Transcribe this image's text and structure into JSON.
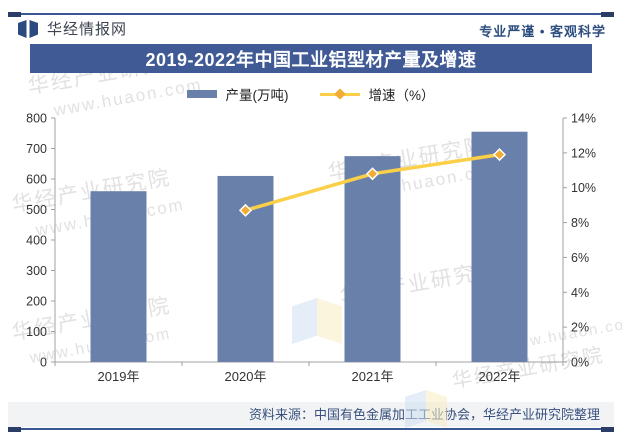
{
  "header": {
    "brand": "华经情报网",
    "slogan": "专业严谨 • 客观科学"
  },
  "title": "2019-2022年中国工业铝型材产量及增速",
  "legend": {
    "bars": "产量(万吨)",
    "line": "增速（%）"
  },
  "source": "资料来源：中国有色金属加工工业协会，华经产业研究院整理",
  "watermark": {
    "cn": "华经产业研究院",
    "url": "www.huaon.com"
  },
  "colors": {
    "banner": "#3F5A94",
    "rule": "#3A5795",
    "rule_nub": "#2B3C66",
    "bar": "#6981AA",
    "line": "#FBCF47",
    "marker": "#F2AC35",
    "axis": "#A0A0A0",
    "axis_text": "#333333",
    "source_text": "#38517E"
  },
  "chart_data": {
    "type": "bar",
    "title": "2019-2022年中国工业铝型材产量及增速",
    "categories": [
      "2019年",
      "2020年",
      "2021年",
      "2022年"
    ],
    "series": [
      {
        "name": "产量(万吨)",
        "type": "bar",
        "axis": "left",
        "values": [
          560,
          610,
          675,
          755
        ]
      },
      {
        "name": "增速（%）",
        "type": "line",
        "axis": "right",
        "values": [
          null,
          8.7,
          10.8,
          11.9
        ]
      }
    ],
    "left_axis": {
      "label": "",
      "min": 0,
      "max": 800,
      "step": 100
    },
    "right_axis": {
      "label": "",
      "min": 0,
      "max": 14,
      "step": 2,
      "suffix": "%"
    },
    "grid": false,
    "legend_position": "top"
  }
}
